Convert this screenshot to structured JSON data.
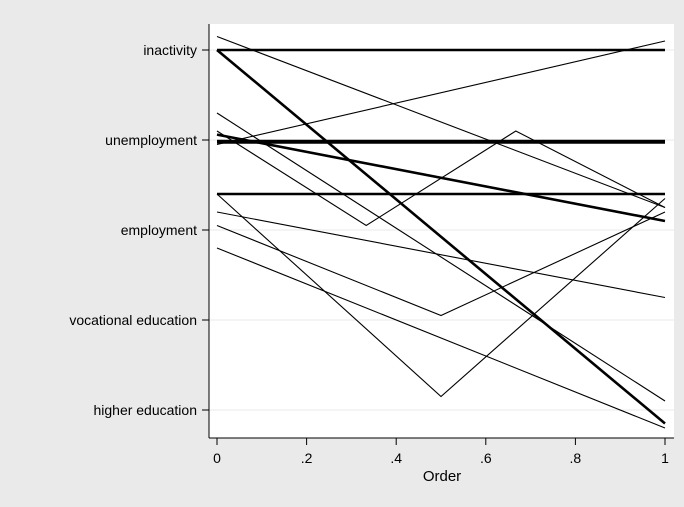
{
  "chart_data": {
    "type": "line",
    "title": "",
    "xlabel": "Order",
    "ylabel": "",
    "xlim": [
      0,
      1
    ],
    "ylim": [
      0.6,
      5.4
    ],
    "grid": true,
    "legend": "none",
    "x_ticks": [
      {
        "value": 0,
        "label": "0"
      },
      {
        "value": 0.2,
        "label": ".2"
      },
      {
        "value": 0.4,
        "label": ".4"
      },
      {
        "value": 0.6,
        "label": ".6"
      },
      {
        "value": 0.8,
        "label": ".8"
      },
      {
        "value": 1,
        "label": "1"
      }
    ],
    "y_ticks": [
      {
        "value": 1,
        "label": "higher education"
      },
      {
        "value": 2,
        "label": "vocational education"
      },
      {
        "value": 3,
        "label": "employment"
      },
      {
        "value": 4,
        "label": "unemployment"
      },
      {
        "value": 5,
        "label": "inactivity"
      }
    ],
    "series": [
      {
        "weight": "bold",
        "x": [
          0,
          1
        ],
        "y": [
          5.0,
          5.0
        ]
      },
      {
        "weight": "bold",
        "x": [
          0,
          1
        ],
        "y": [
          5.0,
          0.85
        ]
      },
      {
        "weight": "bold",
        "x": [
          0,
          1
        ],
        "y": [
          4.06,
          3.1
        ]
      },
      {
        "weight": "thick",
        "x": [
          0,
          1
        ],
        "y": [
          3.98,
          3.98
        ]
      },
      {
        "weight": "bold",
        "x": [
          0,
          1
        ],
        "y": [
          3.4,
          3.4
        ]
      },
      {
        "weight": "thin",
        "x": [
          0,
          1
        ],
        "y": [
          5.15,
          3.25
        ]
      },
      {
        "weight": "thin",
        "x": [
          0,
          1
        ],
        "y": [
          3.95,
          5.1
        ]
      },
      {
        "weight": "thin",
        "x": [
          0,
          1
        ],
        "y": [
          4.3,
          1.1
        ]
      },
      {
        "weight": "thin",
        "x": [
          0,
          0.333,
          0.667,
          1
        ],
        "y": [
          4.1,
          3.05,
          4.1,
          3.25
        ]
      },
      {
        "weight": "thin",
        "x": [
          0,
          1
        ],
        "y": [
          3.2,
          2.25
        ]
      },
      {
        "weight": "thin",
        "x": [
          0,
          0.5,
          1
        ],
        "y": [
          3.4,
          1.15,
          3.35
        ]
      },
      {
        "weight": "thin",
        "x": [
          0,
          0.5,
          1
        ],
        "y": [
          3.05,
          2.05,
          3.2
        ]
      },
      {
        "weight": "thin",
        "x": [
          0,
          1
        ],
        "y": [
          2.8,
          0.8
        ]
      }
    ]
  }
}
